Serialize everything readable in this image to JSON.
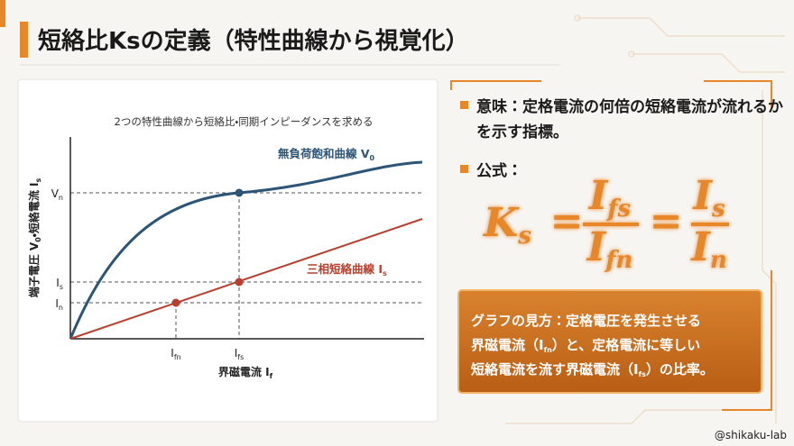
{
  "header": {
    "title": "短絡比Ksの定義（特性曲線から視覚化）"
  },
  "chart": {
    "caption": "2つの特性曲線から短絡比・同期インピーダンスを求める",
    "curve_labels": [
      [
        "無負荷飽和曲線 V",
        "0"
      ],
      [
        "三相短絡曲線 I",
        "s"
      ]
    ],
    "y_axis_label": [
      "端子電圧 V",
      "0",
      "・短絡電流 I",
      "s"
    ],
    "x_axis_label": [
      "界磁電流 I",
      "f"
    ],
    "y_ticks": [
      [
        "V",
        "n"
      ],
      [
        "I",
        "s"
      ],
      [
        "I",
        "n"
      ]
    ],
    "x_ticks": [
      [
        "I",
        "fn"
      ],
      [
        "I",
        "fs"
      ]
    ]
  },
  "panel": {
    "meaning_lines": [
      "意味：定格電流の何倍の短絡電流が流れるか",
      "を示す指標。"
    ],
    "formula_heading": "公式：",
    "formula": {
      "lhs": [
        "K",
        "s"
      ],
      "eq": "=",
      "frac1_num": [
        "I",
        "fs"
      ],
      "frac1_den": [
        "I",
        "fn"
      ],
      "frac2_num": [
        "I",
        "s"
      ],
      "frac2_den": [
        "I",
        "n"
      ]
    },
    "note_lines": [
      [
        "グラフの見方：定格電圧を発生させる"
      ],
      [
        "界磁電流（I",
        "fn",
        "）と、定格電流に等しい"
      ],
      [
        "短絡電流を流す界磁電流（I",
        "fs",
        "）の比率。"
      ]
    ]
  },
  "footer": {
    "credit": "@shikaku-lab"
  }
}
